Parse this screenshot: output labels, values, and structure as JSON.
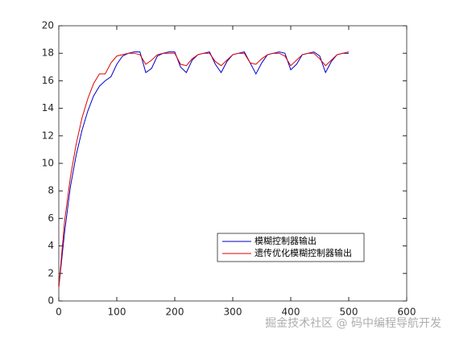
{
  "chart_data": {
    "type": "line",
    "x": [
      0,
      10,
      20,
      30,
      40,
      50,
      60,
      70,
      80,
      90,
      100,
      110,
      120,
      130,
      140,
      150,
      160,
      170,
      180,
      190,
      200,
      210,
      220,
      230,
      240,
      250,
      260,
      270,
      280,
      290,
      300,
      310,
      320,
      330,
      340,
      350,
      360,
      370,
      380,
      390,
      400,
      410,
      420,
      430,
      440,
      450,
      460,
      470,
      480,
      490,
      500
    ],
    "series": [
      {
        "name": "模糊控制器输出",
        "color": "#0000c8",
        "values": [
          1.0,
          5.0,
          8.3,
          10.6,
          12.4,
          13.8,
          14.9,
          15.6,
          16.0,
          16.3,
          17.2,
          17.8,
          18.0,
          18.1,
          18.1,
          16.6,
          16.9,
          17.8,
          18.0,
          18.1,
          18.1,
          17.0,
          16.6,
          17.5,
          17.9,
          18.0,
          18.1,
          17.2,
          16.6,
          17.4,
          17.9,
          18.0,
          18.1,
          17.3,
          16.5,
          17.3,
          17.9,
          18.0,
          18.1,
          18.0,
          16.8,
          17.2,
          17.9,
          18.0,
          18.1,
          17.8,
          16.6,
          17.4,
          17.9,
          18.0,
          18.0
        ]
      },
      {
        "name": "遗传优化模糊控制器输出",
        "color": "#e00000",
        "values": [
          1.0,
          5.8,
          9.0,
          11.4,
          13.3,
          14.7,
          15.8,
          16.5,
          16.5,
          17.3,
          17.8,
          17.9,
          18.0,
          18.0,
          17.9,
          17.2,
          17.5,
          17.9,
          18.0,
          18.0,
          18.0,
          17.2,
          17.1,
          17.6,
          17.9,
          18.0,
          18.0,
          17.4,
          17.1,
          17.5,
          17.9,
          18.0,
          18.0,
          17.3,
          17.2,
          17.6,
          17.9,
          18.0,
          18.0,
          17.8,
          17.1,
          17.5,
          17.9,
          18.0,
          18.0,
          17.6,
          17.1,
          17.5,
          17.9,
          18.0,
          18.1
        ]
      }
    ],
    "xlim": [
      0,
      600
    ],
    "xticks": [
      0,
      100,
      200,
      300,
      400,
      500,
      600
    ],
    "ylim": [
      0,
      20
    ],
    "yticks": [
      0,
      2,
      4,
      6,
      8,
      10,
      12,
      14,
      16,
      18,
      20
    ],
    "grid": false,
    "watermark": "掘金技术社区 @ 码中编程导航开发"
  }
}
